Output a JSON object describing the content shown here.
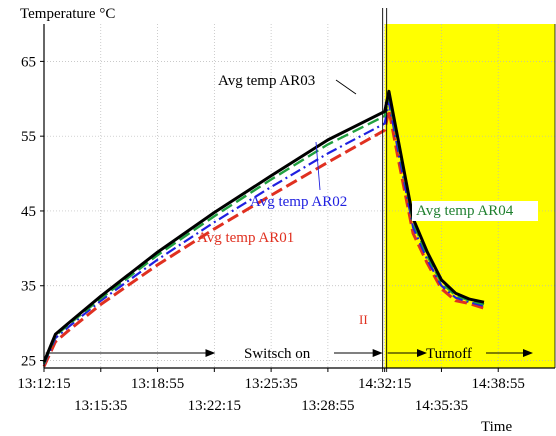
{
  "chart_data": {
    "type": "line",
    "ylabel": "Temperature °C",
    "xlabel": "Time",
    "ylim": [
      24,
      70
    ],
    "xlim_seconds_from_start": [
      0,
      1800
    ],
    "x_ticks_upper": [
      "13:12:15",
      "13:18:55",
      "13:25:35",
      "14:32:15",
      "14:38:55"
    ],
    "x_ticks_lower": [
      "13:15:35",
      "13:22:15",
      "13:28:55",
      "14:35:35"
    ],
    "y_ticks": [
      25,
      35,
      45,
      55,
      65
    ],
    "grid": true,
    "highlight_region": {
      "from_x": 1200,
      "to_x": 1800,
      "color": "#ffff00"
    },
    "series": [
      {
        "name": "Avg temp AR01",
        "color": "#e03020",
        "style": "dashed",
        "x": [
          0,
          40,
          80,
          200,
          400,
          600,
          800,
          1000,
          1200,
          1215,
          1250,
          1300,
          1350,
          1400,
          1450,
          1500,
          1550
        ],
        "y": [
          24.2,
          27.5,
          28.8,
          32.5,
          37.8,
          42.6,
          47.1,
          51.5,
          55.8,
          58.5,
          51.5,
          42.0,
          38.0,
          34.6,
          33.0,
          32.6,
          32.0
        ]
      },
      {
        "name": "Avg temp AR02",
        "color": "#2020e0",
        "style": "dashdot",
        "x": [
          0,
          40,
          80,
          200,
          400,
          600,
          800,
          1000,
          1200,
          1215,
          1250,
          1300,
          1350,
          1400,
          1450,
          1500,
          1550
        ],
        "y": [
          24.5,
          28.0,
          29.3,
          33.0,
          38.5,
          43.5,
          48.2,
          52.7,
          56.7,
          59.5,
          52.5,
          42.8,
          38.5,
          35.0,
          33.4,
          32.8,
          32.3
        ]
      },
      {
        "name": "Avg temp AR03",
        "color": "#000000",
        "style": "solid",
        "x": [
          0,
          40,
          80,
          200,
          400,
          600,
          800,
          1000,
          1200,
          1215,
          1250,
          1300,
          1350,
          1400,
          1450,
          1500,
          1550
        ],
        "y": [
          24.8,
          28.5,
          29.8,
          33.6,
          39.5,
          44.8,
          49.7,
          54.5,
          58.3,
          61.0,
          54.0,
          44.0,
          39.5,
          35.8,
          34.0,
          33.2,
          32.8
        ]
      },
      {
        "name": "Avg temp AR04",
        "color": "#20a040",
        "style": "dashed",
        "x": [
          0,
          40,
          80,
          200,
          400,
          600,
          800,
          1000,
          1200,
          1215,
          1250,
          1300,
          1350,
          1400,
          1450,
          1500,
          1550
        ],
        "y": [
          24.6,
          28.3,
          29.6,
          33.3,
          39.1,
          44.3,
          49.2,
          53.9,
          57.7,
          60.3,
          53.5,
          43.5,
          39.0,
          35.4,
          33.7,
          33.0,
          32.5
        ]
      }
    ],
    "annotations": [
      {
        "text": "Switsch on",
        "at_x": 830,
        "y": 26.0
      },
      {
        "text": "Turnoff",
        "at_x": 1380,
        "y": 26.0
      }
    ],
    "break_mark": "II"
  }
}
